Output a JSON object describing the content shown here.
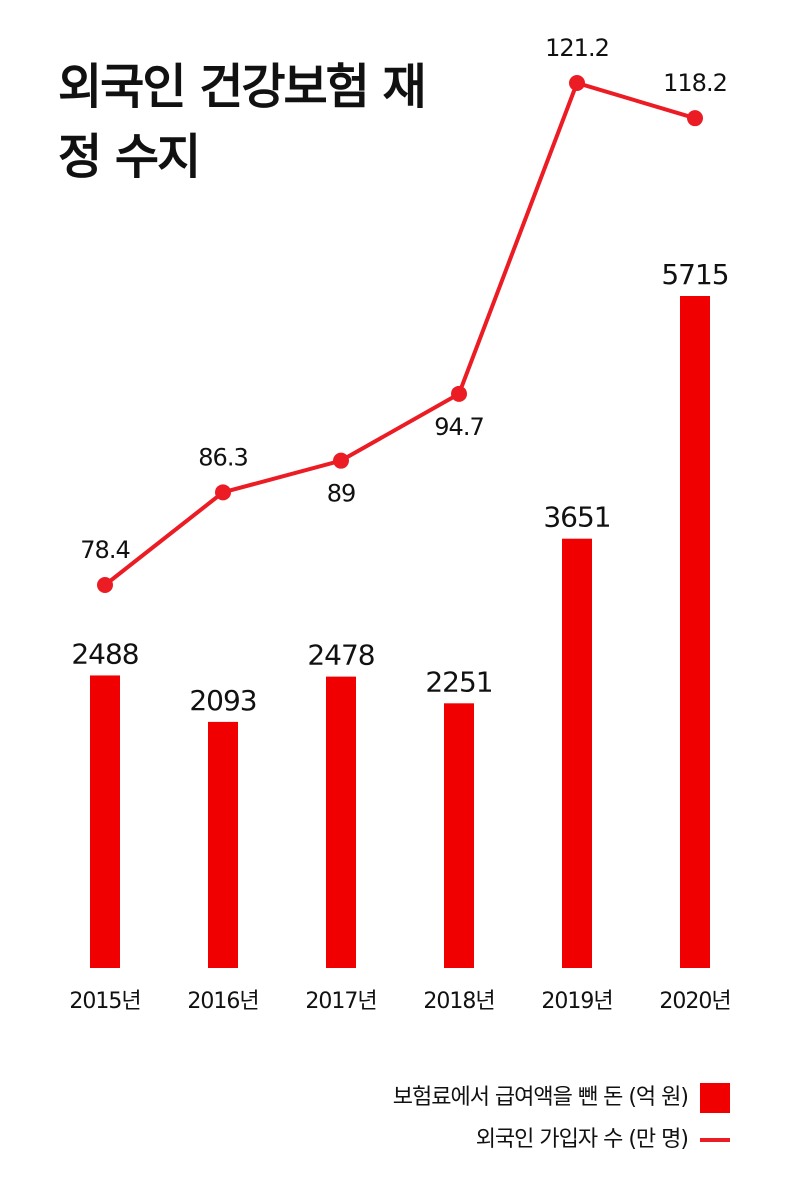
{
  "chart_data": {
    "type": "combo",
    "title": "외국인 건강보험 재정 수지",
    "categories": [
      "2015년",
      "2016년",
      "2017년",
      "2018년",
      "2019년",
      "2020년"
    ],
    "series": [
      {
        "name": "보험료에서 급여액을 뺀 돈 (억 원)",
        "type": "bar",
        "color": "#f00000",
        "values": [
          2488,
          2093,
          2478,
          2251,
          3651,
          5715
        ]
      },
      {
        "name": "외국인 가입자 수 (만 명)",
        "type": "line",
        "axis": "y2",
        "color": "#ec1c24",
        "values": [
          78.4,
          86.3,
          89,
          94.7,
          121.2,
          118.2
        ]
      }
    ]
  }
}
